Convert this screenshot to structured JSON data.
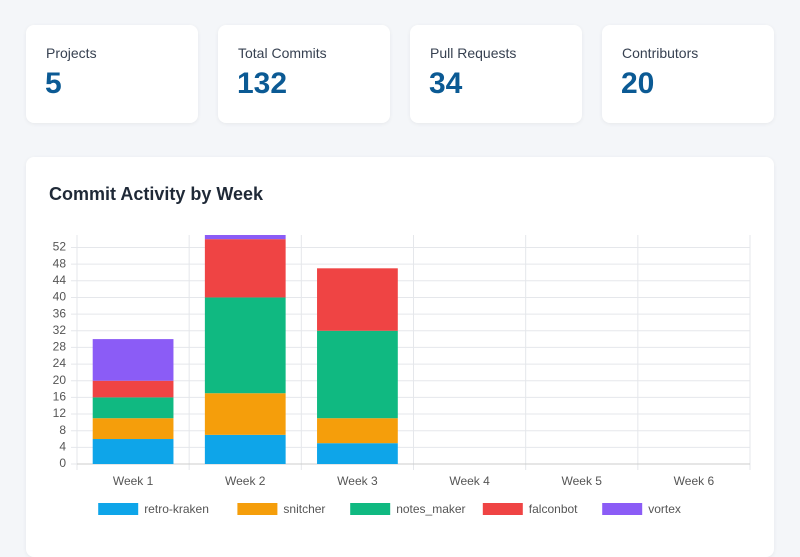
{
  "stats": [
    {
      "label": "Projects",
      "value": 5
    },
    {
      "label": "Total Commits",
      "value": 132
    },
    {
      "label": "Pull Requests",
      "value": 34
    },
    {
      "label": "Contributors",
      "value": 20
    }
  ],
  "chart_data": {
    "type": "stacked_bar",
    "title": "Commit Activity by Week",
    "categories": [
      "Week 1",
      "Week 2",
      "Week 3",
      "Week 4",
      "Week 5",
      "Week 6"
    ],
    "series": [
      {
        "name": "retro-kraken",
        "color": "#0ea5e9",
        "values": [
          6,
          7,
          5,
          0,
          0,
          0
        ]
      },
      {
        "name": "snitcher",
        "color": "#f59e0b",
        "values": [
          5,
          10,
          6,
          0,
          0,
          0
        ]
      },
      {
        "name": "notes_maker",
        "color": "#10b981",
        "values": [
          5,
          23,
          21,
          0,
          0,
          0
        ]
      },
      {
        "name": "falconbot",
        "color": "#ef4444",
        "values": [
          4,
          14,
          15,
          0,
          0,
          0
        ]
      },
      {
        "name": "vortex",
        "color": "#8b5cf6",
        "values": [
          10,
          1,
          0,
          0,
          0,
          0
        ]
      }
    ],
    "ylim": [
      0,
      55
    ],
    "yticks": [
      0,
      4,
      8,
      12,
      16,
      20,
      24,
      28,
      32,
      36,
      40,
      44,
      48,
      52
    ],
    "grid": true,
    "legend": "bottom"
  }
}
